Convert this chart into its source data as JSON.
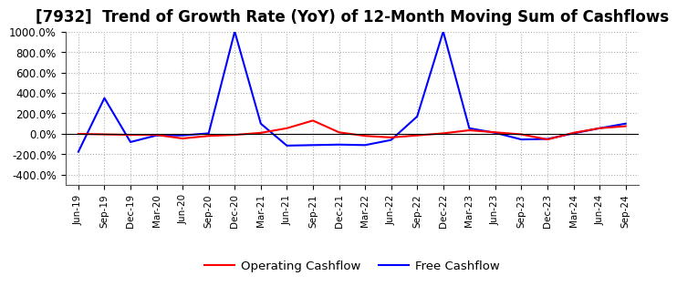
{
  "title": "[7932]  Trend of Growth Rate (YoY) of 12-Month Moving Sum of Cashflows",
  "title_fontsize": 12,
  "ylim": [
    -500,
    1000
  ],
  "yticks": [
    -400,
    -200,
    0,
    200,
    400,
    600,
    800,
    1000
  ],
  "background_color": "#ffffff",
  "plot_bg_color": "#ffffff",
  "grid_color": "#b0b0b0",
  "operating_color": "#ff0000",
  "free_color": "#0000ff",
  "legend_labels": [
    "Operating Cashflow",
    "Free Cashflow"
  ],
  "x_labels": [
    "Jun-19",
    "Sep-19",
    "Dec-19",
    "Mar-20",
    "Jun-20",
    "Sep-20",
    "Dec-20",
    "Mar-21",
    "Jun-21",
    "Sep-21",
    "Dec-21",
    "Mar-22",
    "Jun-22",
    "Sep-22",
    "Dec-22",
    "Mar-23",
    "Jun-23",
    "Sep-23",
    "Dec-23",
    "Mar-24",
    "Jun-24",
    "Sep-24"
  ],
  "operating": [
    0,
    -5,
    -10,
    -10,
    -45,
    -20,
    -10,
    10,
    55,
    130,
    15,
    -20,
    -35,
    -15,
    5,
    35,
    15,
    -5,
    -55,
    10,
    55,
    75
  ],
  "free": [
    -175,
    350,
    -80,
    -15,
    -15,
    5,
    1000,
    100,
    -115,
    -110,
    -105,
    -110,
    -60,
    170,
    1000,
    55,
    10,
    -55,
    -50,
    5,
    55,
    100
  ]
}
